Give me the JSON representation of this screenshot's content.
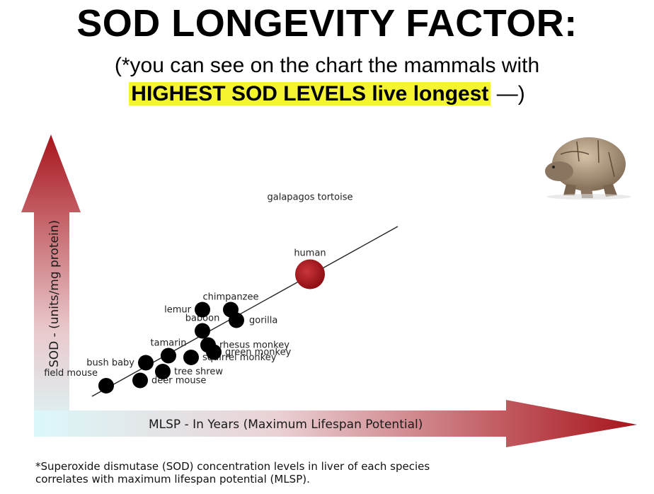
{
  "title": "SOD LONGEVITY FACTOR:",
  "subtitle_line1": "(*you can see on the chart the mammals with",
  "subtitle_highlight": "HIGHEST SOD LEVELS live longest",
  "subtitle_tail": " —)",
  "footnote": "*Superoxide dismutase (SOD) concentration levels in liver of each species\ncorrelates with maximum lifespan potential (MLSP).",
  "chart_data": {
    "type": "scatter",
    "xlabel": "MLSP - In Years (Maximum Lifespan Potential)",
    "ylabel": "SOD - (units/mg protein)",
    "grid": false,
    "colors": {
      "point": "#000000",
      "human": "#a3151b",
      "axis_arrow": "#a8141c",
      "axis_light": "#d7f7f8"
    },
    "points": [
      {
        "name": "field mouse",
        "x": 1.0,
        "y": 1.0
      },
      {
        "name": "deer mouse",
        "x": 2.2,
        "y": 1.3
      },
      {
        "name": "bush baby",
        "x": 2.4,
        "y": 2.3
      },
      {
        "name": "tree shrew",
        "x": 3.0,
        "y": 1.8
      },
      {
        "name": "tamarin",
        "x": 3.2,
        "y": 2.7
      },
      {
        "name": "squirrel monkey",
        "x": 4.0,
        "y": 2.6
      },
      {
        "name": "rhesus monkey",
        "x": 4.6,
        "y": 3.3
      },
      {
        "name": "green monkey",
        "x": 4.8,
        "y": 2.9
      },
      {
        "name": "baboon",
        "x": 4.4,
        "y": 4.1
      },
      {
        "name": "lemur",
        "x": 4.4,
        "y": 5.3
      },
      {
        "name": "chimpanzee",
        "x": 5.4,
        "y": 5.3
      },
      {
        "name": "gorilla",
        "x": 5.6,
        "y": 4.7
      },
      {
        "name": "human",
        "x": 8.2,
        "y": 7.3
      },
      {
        "name": "galapagos tortoise",
        "x": 11.4,
        "y": 10.3
      }
    ],
    "trendline": {
      "from": [
        0.5,
        0.4
      ],
      "to": [
        11.3,
        10.0
      ]
    }
  }
}
